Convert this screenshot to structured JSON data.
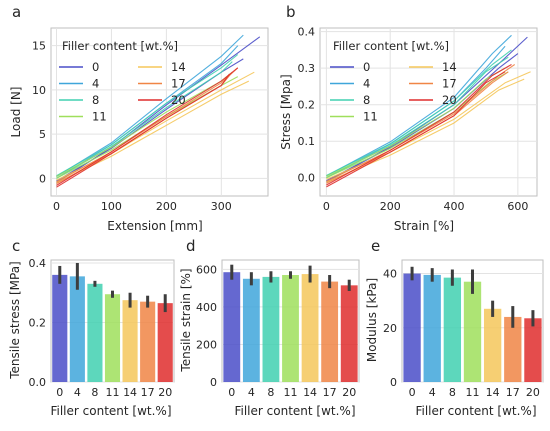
{
  "colors": {
    "0": "#4a4ec8",
    "4": "#3fa6da",
    "8": "#41d0b0",
    "11": "#9fdf5c",
    "14": "#f5c75a",
    "17": "#f08545",
    "20": "#df2d2d"
  },
  "chart_data": [
    {
      "panel": "a",
      "type": "line",
      "xlabel": "Extension [mm]",
      "ylabel": "Load [N]",
      "xlim": [
        -10,
        385
      ],
      "ylim": [
        -2,
        17
      ],
      "xticks": [
        0,
        100,
        200,
        300
      ],
      "yticks": [
        0,
        5,
        10,
        15
      ],
      "legend": {
        "title": "Filler content [wt.%]",
        "placement": "upper-left",
        "entries": [
          "0",
          "4",
          "8",
          "11",
          "14",
          "17",
          "20"
        ]
      },
      "grid": true,
      "series": [
        {
          "name": "0",
          "replicates": [
            [
              [
                0,
                -0.5
              ],
              [
                100,
                3.5
              ],
              [
                200,
                8.3
              ],
              [
                300,
                12.8
              ],
              [
                370,
                16.0
              ]
            ],
            [
              [
                0,
                -0.3
              ],
              [
                100,
                3.4
              ],
              [
                200,
                7.8
              ],
              [
                300,
                12.0
              ],
              [
                340,
                13.5
              ]
            ]
          ]
        },
        {
          "name": "4",
          "replicates": [
            [
              [
                0,
                0.2
              ],
              [
                100,
                4.0
              ],
              [
                200,
                9.0
              ],
              [
                300,
                13.8
              ],
              [
                340,
                16.2
              ]
            ],
            [
              [
                0,
                0.0
              ],
              [
                100,
                3.8
              ],
              [
                200,
                8.5
              ],
              [
                300,
                13.0
              ],
              [
                330,
                15.0
              ]
            ]
          ]
        },
        {
          "name": "8",
          "replicates": [
            [
              [
                0,
                0.3
              ],
              [
                100,
                3.8
              ],
              [
                200,
                8.5
              ],
              [
                300,
                12.5
              ],
              [
                330,
                14.0
              ]
            ],
            [
              [
                0,
                0.0
              ],
              [
                100,
                3.6
              ],
              [
                200,
                8.0
              ],
              [
                300,
                12.0
              ],
              [
                320,
                13.2
              ]
            ]
          ]
        },
        {
          "name": "11",
          "replicates": [
            [
              [
                0,
                0.2
              ],
              [
                100,
                3.5
              ],
              [
                200,
                7.5
              ],
              [
                300,
                11.0
              ],
              [
                320,
                12.0
              ]
            ],
            [
              [
                0,
                0.0
              ],
              [
                100,
                3.2
              ],
              [
                200,
                7.0
              ],
              [
                300,
                10.5
              ],
              [
                330,
                11.5
              ]
            ]
          ]
        },
        {
          "name": "14",
          "replicates": [
            [
              [
                0,
                -0.2
              ],
              [
                100,
                2.8
              ],
              [
                200,
                6.5
              ],
              [
                300,
                10.0
              ],
              [
                360,
                12.0
              ]
            ],
            [
              [
                0,
                -0.5
              ],
              [
                100,
                2.5
              ],
              [
                200,
                6.0
              ],
              [
                300,
                9.5
              ],
              [
                350,
                11.0
              ]
            ]
          ]
        },
        {
          "name": "17",
          "replicates": [
            [
              [
                0,
                -0.4
              ],
              [
                100,
                3.0
              ],
              [
                200,
                7.0
              ],
              [
                300,
                10.8
              ],
              [
                330,
                12.5
              ]
            ],
            [
              [
                0,
                -0.6
              ],
              [
                100,
                2.8
              ],
              [
                200,
                6.8
              ],
              [
                300,
                10.5
              ],
              [
                320,
                12.0
              ]
            ]
          ]
        },
        {
          "name": "20",
          "replicates": [
            [
              [
                0,
                -0.8
              ],
              [
                100,
                3.0
              ],
              [
                200,
                7.2
              ],
              [
                300,
                11.0
              ],
              [
                330,
                12.5
              ]
            ],
            [
              [
                0,
                -1.0
              ],
              [
                100,
                2.8
              ],
              [
                200,
                6.8
              ],
              [
                300,
                10.5
              ],
              [
                315,
                11.8
              ]
            ]
          ]
        }
      ]
    },
    {
      "panel": "b",
      "type": "line",
      "xlabel": "Strain [%]",
      "ylabel": "Stress [Mpa]",
      "xlim": [
        -20,
        660
      ],
      "ylim": [
        -0.05,
        0.41
      ],
      "xticks": [
        0,
        200,
        400,
        600
      ],
      "yticks": [
        0.0,
        0.1,
        0.2,
        0.3,
        0.4
      ],
      "legend": {
        "title": "Filler content [wt.%]",
        "placement": "upper-left",
        "entries": [
          "0",
          "4",
          "8",
          "11",
          "14",
          "17",
          "20"
        ]
      },
      "grid": true,
      "series": [
        {
          "name": "0",
          "replicates": [
            [
              [
                0,
                -0.012
              ],
              [
                200,
                0.085
              ],
              [
                400,
                0.2
              ],
              [
                550,
                0.32
              ],
              [
                630,
                0.385
              ]
            ],
            [
              [
                0,
                -0.008
              ],
              [
                200,
                0.082
              ],
              [
                400,
                0.19
              ],
              [
                540,
                0.3
              ],
              [
                600,
                0.34
              ]
            ]
          ]
        },
        {
          "name": "4",
          "replicates": [
            [
              [
                0,
                0.005
              ],
              [
                200,
                0.098
              ],
              [
                400,
                0.22
              ],
              [
                520,
                0.34
              ],
              [
                580,
                0.39
              ]
            ],
            [
              [
                0,
                0.0
              ],
              [
                200,
                0.092
              ],
              [
                400,
                0.21
              ],
              [
                500,
                0.3
              ],
              [
                560,
                0.36
              ]
            ]
          ]
        },
        {
          "name": "8",
          "replicates": [
            [
              [
                0,
                0.006
              ],
              [
                200,
                0.093
              ],
              [
                400,
                0.21
              ],
              [
                520,
                0.31
              ],
              [
                580,
                0.35
              ]
            ],
            [
              [
                0,
                0.0
              ],
              [
                200,
                0.088
              ],
              [
                400,
                0.2
              ],
              [
                500,
                0.29
              ],
              [
                570,
                0.33
              ]
            ]
          ]
        },
        {
          "name": "11",
          "replicates": [
            [
              [
                0,
                0.004
              ],
              [
                200,
                0.086
              ],
              [
                400,
                0.19
              ],
              [
                500,
                0.27
              ],
              [
                560,
                0.3
              ]
            ],
            [
              [
                0,
                0.0
              ],
              [
                200,
                0.08
              ],
              [
                400,
                0.18
              ],
              [
                510,
                0.26
              ],
              [
                570,
                0.29
              ]
            ]
          ]
        },
        {
          "name": "14",
          "replicates": [
            [
              [
                0,
                -0.004
              ],
              [
                200,
                0.07
              ],
              [
                400,
                0.16
              ],
              [
                560,
                0.26
              ],
              [
                640,
                0.29
              ]
            ],
            [
              [
                0,
                -0.012
              ],
              [
                200,
                0.062
              ],
              [
                400,
                0.15
              ],
              [
                540,
                0.24
              ],
              [
                620,
                0.27
              ]
            ]
          ]
        },
        {
          "name": "17",
          "replicates": [
            [
              [
                0,
                -0.01
              ],
              [
                200,
                0.075
              ],
              [
                400,
                0.175
              ],
              [
                540,
                0.28
              ],
              [
                590,
                0.31
              ]
            ],
            [
              [
                0,
                -0.015
              ],
              [
                200,
                0.07
              ],
              [
                400,
                0.17
              ],
              [
                520,
                0.26
              ],
              [
                570,
                0.29
              ]
            ]
          ]
        },
        {
          "name": "20",
          "replicates": [
            [
              [
                0,
                -0.02
              ],
              [
                200,
                0.075
              ],
              [
                400,
                0.18
              ],
              [
                520,
                0.28
              ],
              [
                580,
                0.31
              ]
            ],
            [
              [
                0,
                -0.025
              ],
              [
                200,
                0.07
              ],
              [
                400,
                0.17
              ],
              [
                500,
                0.26
              ],
              [
                560,
                0.29
              ]
            ]
          ]
        }
      ]
    },
    {
      "panel": "c",
      "type": "bar",
      "xlabel": "Filler content [wt.%]",
      "ylabel": "Tensile stress [MPa]",
      "categories": [
        "0",
        "4",
        "8",
        "11",
        "14",
        "17",
        "20"
      ],
      "values": [
        0.36,
        0.355,
        0.33,
        0.295,
        0.275,
        0.27,
        0.265
      ],
      "errors": [
        0.03,
        0.045,
        0.01,
        0.012,
        0.025,
        0.02,
        0.03
      ],
      "ylim": [
        0,
        0.41
      ],
      "yticks": [
        0.0,
        0.2,
        0.4
      ],
      "grid": true
    },
    {
      "panel": "d",
      "type": "bar",
      "xlabel": "Filler content [wt.%]",
      "ylabel": "Tensile strain [%]",
      "categories": [
        "0",
        "4",
        "8",
        "11",
        "14",
        "17",
        "20"
      ],
      "values": [
        585,
        550,
        560,
        570,
        575,
        535,
        515
      ],
      "errors": [
        40,
        35,
        30,
        20,
        45,
        35,
        30
      ],
      "ylim": [
        0,
        650
      ],
      "yticks": [
        0,
        200,
        400,
        600
      ],
      "grid": true
    },
    {
      "panel": "e",
      "type": "bar",
      "xlabel": "Filler content [wt.%]",
      "ylabel": "Modulus [kPa]",
      "categories": [
        "0",
        "4",
        "8",
        "11",
        "14",
        "17",
        "20"
      ],
      "values": [
        40,
        39.5,
        38.5,
        37,
        27,
        24,
        23.5
      ],
      "errors": [
        2.5,
        2.5,
        3,
        4.5,
        3,
        4,
        3
      ],
      "ylim": [
        0,
        45
      ],
      "yticks": [
        0,
        20,
        40
      ],
      "grid": true
    }
  ]
}
